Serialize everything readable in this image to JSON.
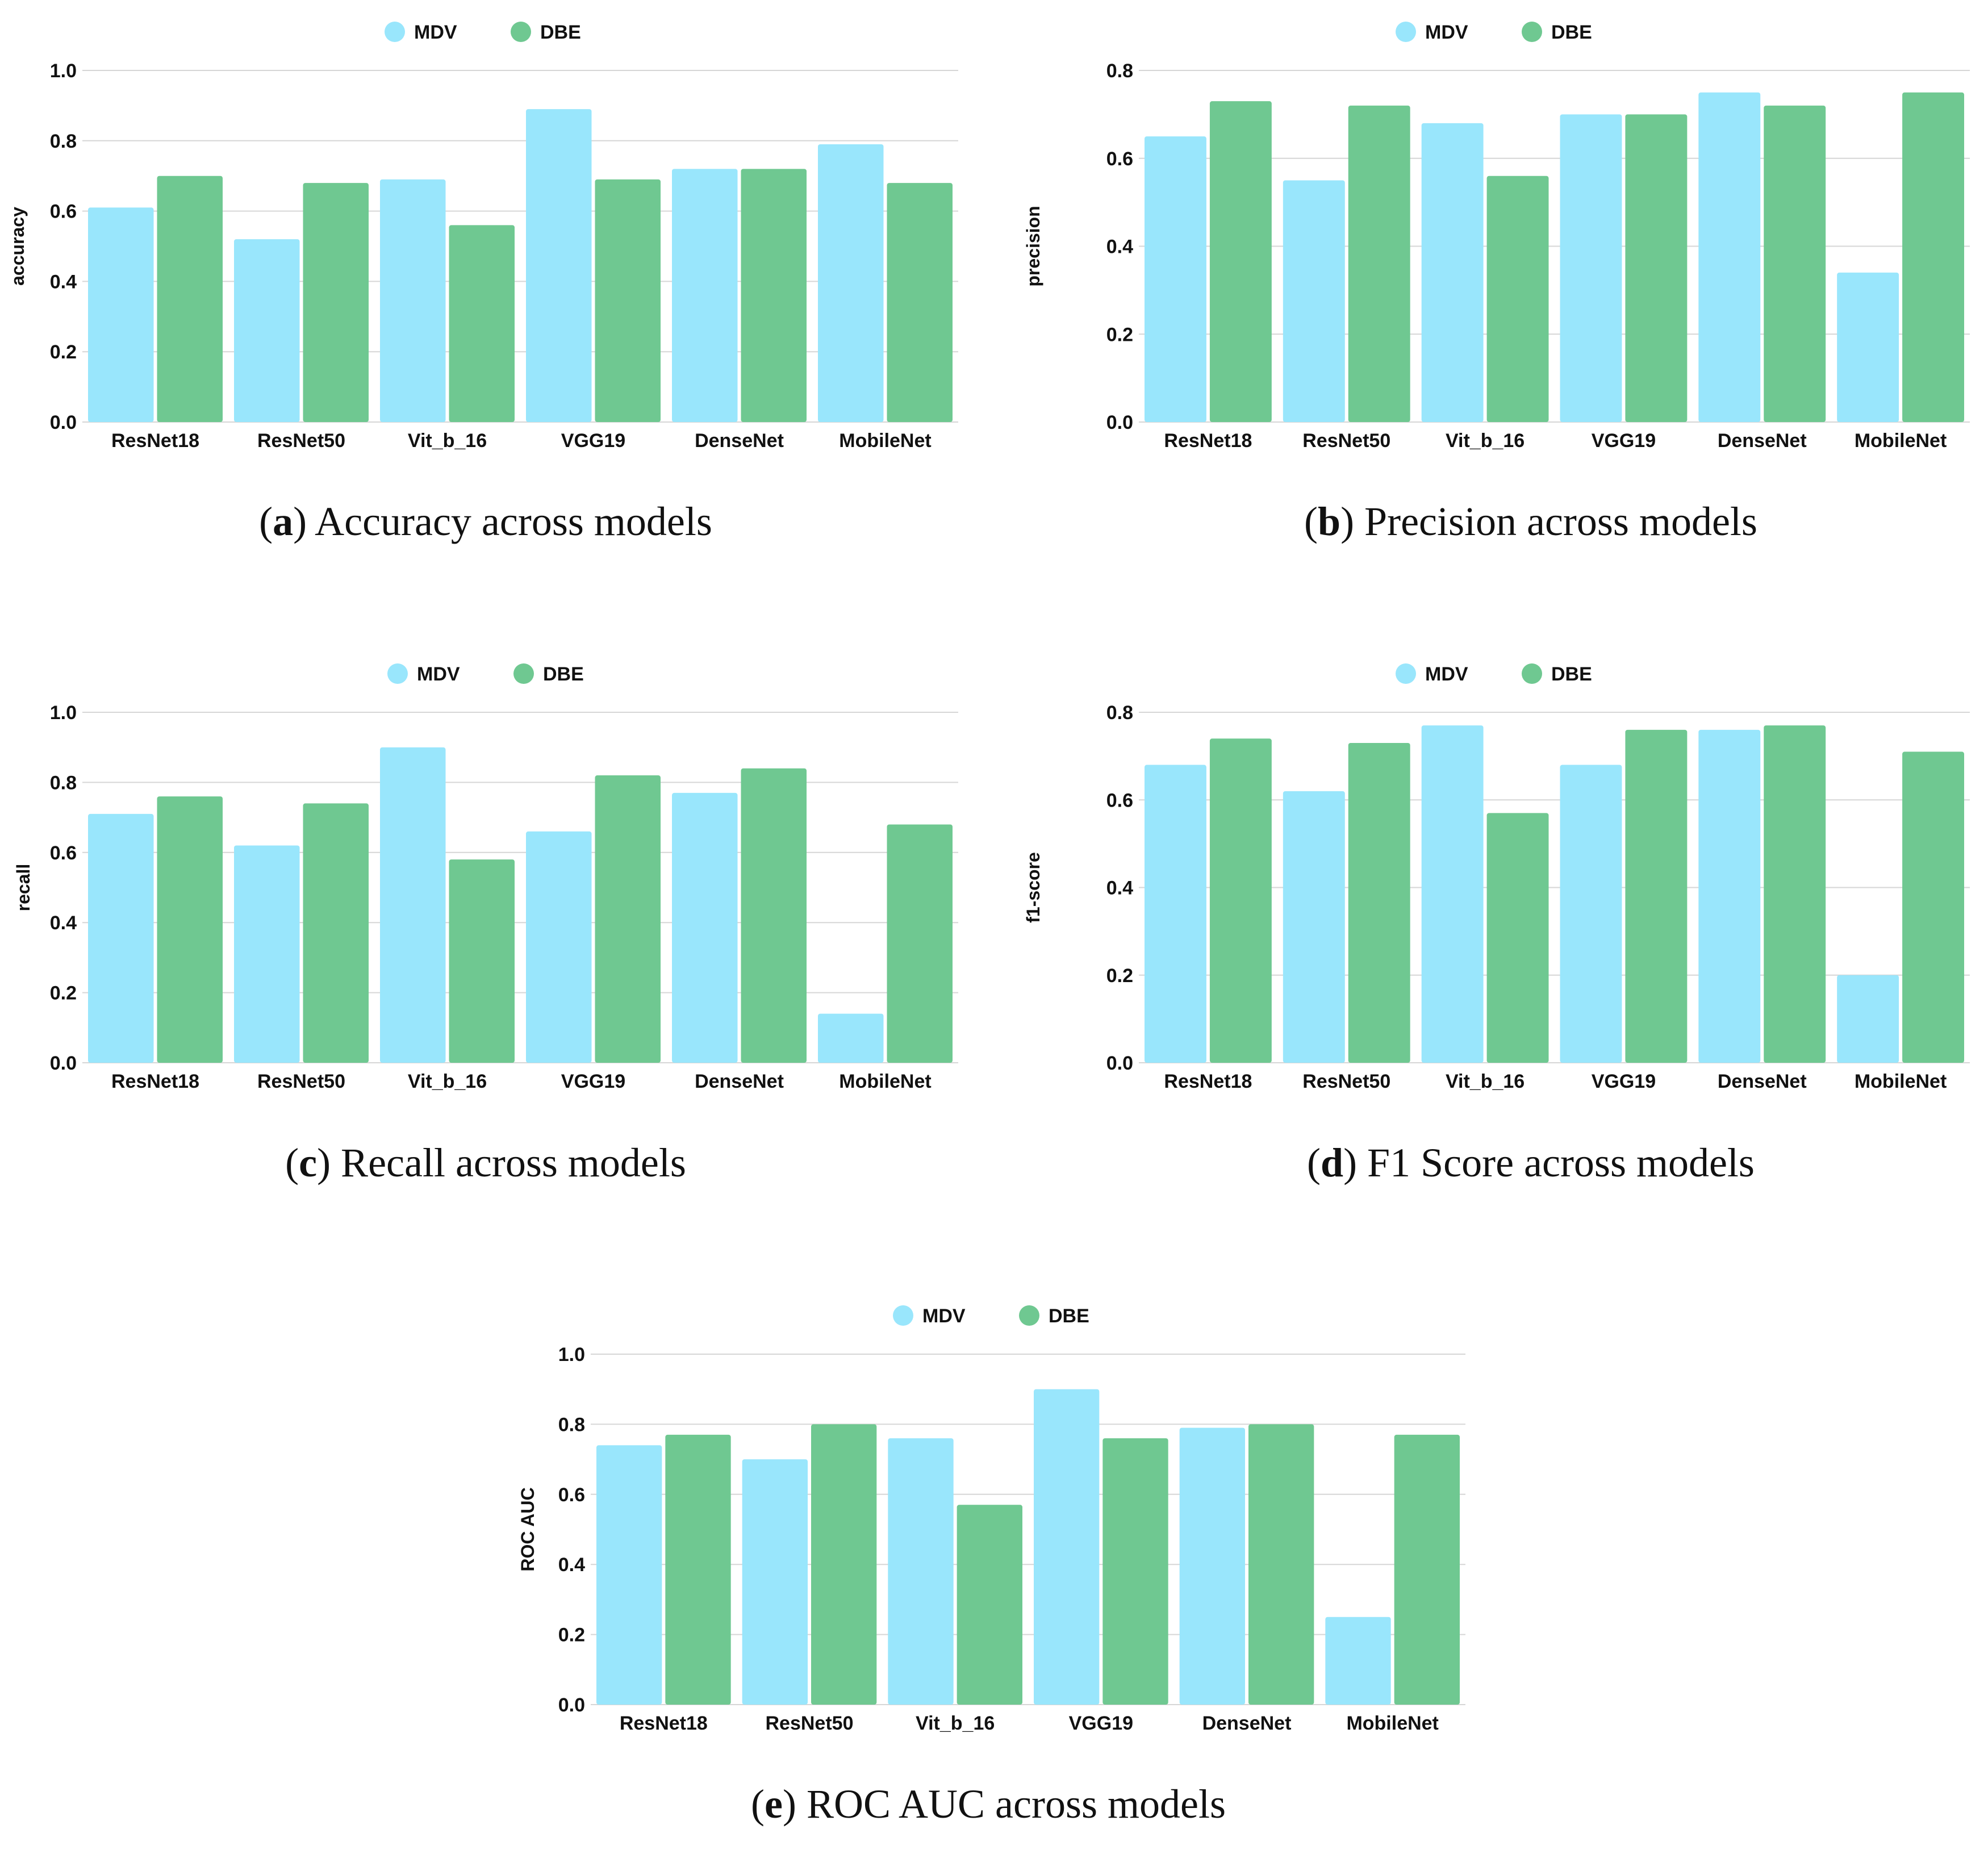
{
  "colors": {
    "MDV": "#99e6fc",
    "DBE": "#6fc891"
  },
  "chart_data": [
    {
      "type": "bar",
      "panel_letter": "a",
      "caption": "Accuracy across models",
      "ylabel": "accuracy",
      "categories": [
        "ResNet18",
        "ResNet50",
        "Vit_b_16",
        "VGG19",
        "DenseNet",
        "MobileNet"
      ],
      "series": [
        {
          "name": "MDV",
          "values": [
            0.61,
            0.52,
            0.69,
            0.89,
            0.72,
            0.79
          ]
        },
        {
          "name": "DBE",
          "values": [
            0.7,
            0.68,
            0.56,
            0.69,
            0.72,
            0.68
          ]
        }
      ],
      "ylim": [
        0,
        1.0
      ],
      "yticks": [
        "0.0",
        "0.2",
        "0.4",
        "0.6",
        "0.8",
        "1.0"
      ],
      "legend": "top-center",
      "grid": true
    },
    {
      "type": "bar",
      "panel_letter": "b",
      "caption": "Precision across models",
      "ylabel": "precision",
      "categories": [
        "ResNet18",
        "ResNet50",
        "Vit_b_16",
        "VGG19",
        "DenseNet",
        "MobileNet"
      ],
      "series": [
        {
          "name": "MDV",
          "values": [
            0.65,
            0.55,
            0.68,
            0.7,
            0.75,
            0.34
          ]
        },
        {
          "name": "DBE",
          "values": [
            0.73,
            0.72,
            0.56,
            0.7,
            0.72,
            0.75
          ]
        }
      ],
      "ylim": [
        0,
        0.8
      ],
      "yticks": [
        "0.0",
        "0.2",
        "0.4",
        "0.6",
        "0.8"
      ],
      "legend": "top-center",
      "grid": true
    },
    {
      "type": "bar",
      "panel_letter": "c",
      "caption": "Recall across models",
      "ylabel": "recall",
      "categories": [
        "ResNet18",
        "ResNet50",
        "Vit_b_16",
        "VGG19",
        "DenseNet",
        "MobileNet"
      ],
      "series": [
        {
          "name": "MDV",
          "values": [
            0.71,
            0.62,
            0.9,
            0.66,
            0.77,
            0.14
          ]
        },
        {
          "name": "DBE",
          "values": [
            0.76,
            0.74,
            0.58,
            0.82,
            0.84,
            0.68
          ]
        }
      ],
      "ylim": [
        0,
        1.0
      ],
      "yticks": [
        "0.0",
        "0.2",
        "0.4",
        "0.6",
        "0.8",
        "1.0"
      ],
      "legend": "top-center",
      "grid": true
    },
    {
      "type": "bar",
      "panel_letter": "d",
      "caption": "F1 Score across models",
      "ylabel": "f1-score",
      "categories": [
        "ResNet18",
        "ResNet50",
        "Vit_b_16",
        "VGG19",
        "DenseNet",
        "MobileNet"
      ],
      "series": [
        {
          "name": "MDV",
          "values": [
            0.68,
            0.62,
            0.77,
            0.68,
            0.76,
            0.2
          ]
        },
        {
          "name": "DBE",
          "values": [
            0.74,
            0.73,
            0.57,
            0.76,
            0.77,
            0.71
          ]
        }
      ],
      "ylim": [
        0,
        0.8
      ],
      "yticks": [
        "0.0",
        "0.2",
        "0.4",
        "0.6",
        "0.8"
      ],
      "legend": "top-center",
      "grid": true
    },
    {
      "type": "bar",
      "panel_letter": "e",
      "caption": "ROC AUC across models",
      "ylabel": "ROC AUC",
      "categories": [
        "ResNet18",
        "ResNet50",
        "Vit_b_16",
        "VGG19",
        "DenseNet",
        "MobileNet"
      ],
      "series": [
        {
          "name": "MDV",
          "values": [
            0.74,
            0.7,
            0.76,
            0.9,
            0.79,
            0.25
          ]
        },
        {
          "name": "DBE",
          "values": [
            0.77,
            0.8,
            0.57,
            0.76,
            0.8,
            0.77
          ]
        }
      ],
      "ylim": [
        0,
        1.0
      ],
      "yticks": [
        "0.0",
        "0.2",
        "0.4",
        "0.6",
        "0.8",
        "1.0"
      ],
      "legend": "top-center",
      "grid": true
    }
  ]
}
